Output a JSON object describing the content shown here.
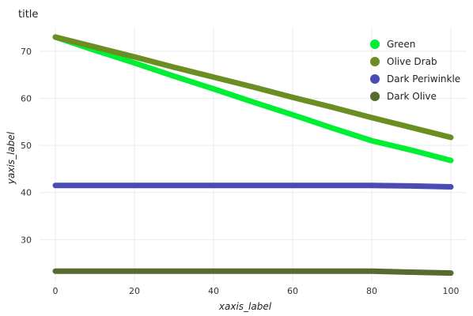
{
  "chart_data": {
    "type": "line",
    "title": "title",
    "xlabel": "xaxis_label",
    "ylabel": "yaxis_label",
    "xlim": [
      -4,
      104
    ],
    "ylim": [
      21,
      75
    ],
    "xticks": [
      0,
      20,
      40,
      60,
      80,
      100
    ],
    "yticks": [
      30,
      40,
      50,
      60,
      70
    ],
    "grid": true,
    "legend_position": "top-right",
    "x": [
      0,
      10,
      20,
      30,
      40,
      50,
      60,
      70,
      80,
      90,
      100
    ],
    "series": [
      {
        "name": "Green",
        "color": "#00ee33",
        "values": [
          73.0,
          70.2,
          67.5,
          64.7,
          62.0,
          59.2,
          56.5,
          53.7,
          51.0,
          49.0,
          46.8
        ]
      },
      {
        "name": "Olive Drab",
        "color": "#6b8e23",
        "values": [
          73.0,
          70.9,
          68.8,
          66.6,
          64.5,
          62.4,
          60.2,
          58.1,
          55.9,
          53.8,
          51.7
        ]
      },
      {
        "name": "Dark Periwinkle",
        "color": "#4b4bb4",
        "values": [
          41.5,
          41.5,
          41.5,
          41.5,
          41.5,
          41.5,
          41.5,
          41.5,
          41.5,
          41.4,
          41.2
        ]
      },
      {
        "name": "Dark Olive",
        "color": "#556b2f",
        "values": [
          23.3,
          23.3,
          23.3,
          23.3,
          23.3,
          23.3,
          23.3,
          23.3,
          23.3,
          23.1,
          22.9
        ]
      }
    ]
  }
}
